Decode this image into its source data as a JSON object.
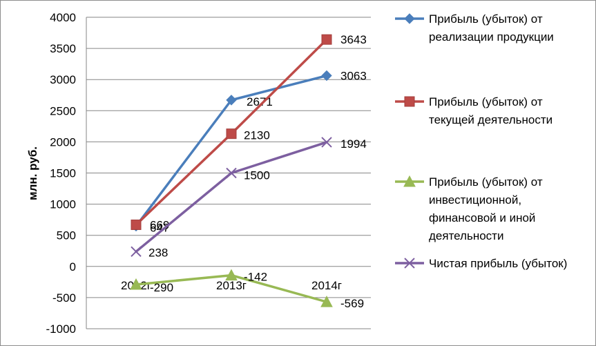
{
  "chart_data": {
    "type": "line",
    "title": "",
    "ylabel": "млн. руб.",
    "xlabel": "",
    "ylim": [
      -1000,
      4000
    ],
    "ytick_step": 500,
    "yticks": [
      "-1000",
      "-500",
      "0",
      "500",
      "1000",
      "1500",
      "2000",
      "2500",
      "3000",
      "3500",
      "4000"
    ],
    "categories": [
      "2012г",
      "2013г",
      "2014г"
    ],
    "grid": "horizontal",
    "legend_position": "right",
    "series": [
      {
        "name": "Прибыль (убыток) от реализации продукции",
        "legend_lines": [
          "Прибыль (убыток) от",
          "реализации продукции"
        ],
        "values": [
          647,
          2671,
          3063
        ],
        "labels": [
          "647",
          "2671",
          "3063"
        ],
        "color": "#4a7ebb",
        "marker": "diamond"
      },
      {
        "name": "Прибыль (убыток) от текущей деятельности",
        "legend_lines": [
          "Прибыль (убыток) от",
          "текущей деятельности"
        ],
        "values": [
          669,
          2130,
          3643
        ],
        "labels": [
          "669",
          "2130",
          "3643"
        ],
        "color": "#be4b48",
        "marker": "square"
      },
      {
        "name": "Прибыль (убыток) от инвестиционной, финансовой и иной деятельности",
        "legend_lines": [
          "Прибыль (убыток) от",
          "инвестиционной,",
          "финансовой и иной",
          "деятельности"
        ],
        "values": [
          -290,
          -142,
          -569
        ],
        "labels": [
          "-290",
          "-142",
          "-569"
        ],
        "color": "#98b954",
        "marker": "triangle"
      },
      {
        "name": "Чистая прибыль (убыток)",
        "legend_lines": [
          "Чистая прибыль (убыток)"
        ],
        "values": [
          238,
          1500,
          1994
        ],
        "labels": [
          "238",
          "1500",
          "1994"
        ],
        "color": "#7d5fa0",
        "marker": "x"
      }
    ]
  }
}
